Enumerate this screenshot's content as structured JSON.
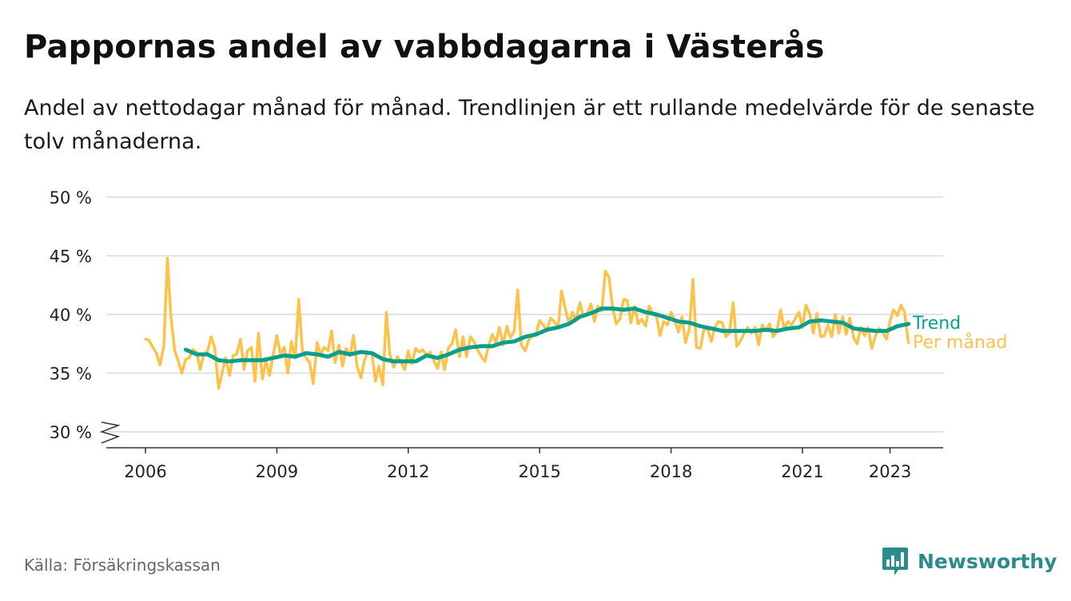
{
  "header": {
    "title": "Pappornas andel av vabbdagarna i Västerås",
    "subtitle": "Andel av nettodagar månad för månad. Trendlinjen är ett rullande medelvärde för de senaste tolv månaderna."
  },
  "footer": {
    "source": "Källa: Försäkringskassan",
    "brand": "Newsworthy"
  },
  "colors": {
    "monthly": "#fcc24a",
    "trend": "#0b9e8c",
    "grid": "#d9d9d9",
    "brand": "#2a8d8a"
  },
  "chart_data": {
    "type": "line",
    "x_unit": "year (decimal)",
    "xlim": [
      2006,
      2023.3
    ],
    "ylim": [
      30,
      50
    ],
    "y_axis_break": true,
    "grid": "horizontal",
    "x_ticks": [
      2006,
      2009,
      2012,
      2015,
      2018,
      2021,
      2023
    ],
    "y_ticks": [
      {
        "value": 30,
        "label": "30 %"
      },
      {
        "value": 35,
        "label": "35 %"
      },
      {
        "value": 40,
        "label": "40 %"
      },
      {
        "value": 45,
        "label": "45 %"
      },
      {
        "value": 50,
        "label": "50 %"
      }
    ],
    "legend": "inline labels at line ends",
    "series": [
      {
        "name": "Per månad",
        "color": "#fcc24a",
        "points": [
          [
            2006.0,
            37.9
          ],
          [
            2006.08,
            37.8
          ],
          [
            2006.17,
            37.2
          ],
          [
            2006.25,
            36.7
          ],
          [
            2006.33,
            35.7
          ],
          [
            2006.42,
            37.3
          ],
          [
            2006.5,
            44.8
          ],
          [
            2006.58,
            39.8
          ],
          [
            2006.67,
            36.9
          ],
          [
            2006.75,
            36.0
          ],
          [
            2006.83,
            35.0
          ],
          [
            2006.92,
            36.2
          ],
          [
            2007.0,
            36.3
          ],
          [
            2007.08,
            37.0
          ],
          [
            2007.17,
            36.8
          ],
          [
            2007.25,
            35.3
          ],
          [
            2007.33,
            36.6
          ],
          [
            2007.42,
            36.9
          ],
          [
            2007.5,
            38.1
          ],
          [
            2007.58,
            37.2
          ],
          [
            2007.67,
            33.7
          ],
          [
            2007.75,
            35.0
          ],
          [
            2007.83,
            36.3
          ],
          [
            2007.92,
            34.8
          ],
          [
            2008.0,
            36.5
          ],
          [
            2008.08,
            36.6
          ],
          [
            2008.17,
            37.9
          ],
          [
            2008.25,
            35.3
          ],
          [
            2008.33,
            36.9
          ],
          [
            2008.42,
            37.2
          ],
          [
            2008.5,
            34.3
          ],
          [
            2008.58,
            38.4
          ],
          [
            2008.67,
            34.5
          ],
          [
            2008.75,
            36.1
          ],
          [
            2008.83,
            34.8
          ],
          [
            2008.92,
            36.6
          ],
          [
            2009.0,
            38.2
          ],
          [
            2009.08,
            36.6
          ],
          [
            2009.17,
            37.2
          ],
          [
            2009.25,
            35.0
          ],
          [
            2009.33,
            37.7
          ],
          [
            2009.42,
            36.3
          ],
          [
            2009.5,
            41.3
          ],
          [
            2009.58,
            37.0
          ],
          [
            2009.67,
            36.3
          ],
          [
            2009.75,
            35.9
          ],
          [
            2009.83,
            34.1
          ],
          [
            2009.92,
            37.6
          ],
          [
            2010.0,
            36.6
          ],
          [
            2010.08,
            37.2
          ],
          [
            2010.17,
            36.9
          ],
          [
            2010.25,
            38.6
          ],
          [
            2010.33,
            35.9
          ],
          [
            2010.42,
            37.4
          ],
          [
            2010.5,
            35.6
          ],
          [
            2010.58,
            37.1
          ],
          [
            2010.67,
            36.5
          ],
          [
            2010.75,
            38.2
          ],
          [
            2010.83,
            35.6
          ],
          [
            2010.92,
            34.6
          ],
          [
            2011.0,
            36.1
          ],
          [
            2011.08,
            36.8
          ],
          [
            2011.17,
            36.7
          ],
          [
            2011.25,
            34.3
          ],
          [
            2011.33,
            35.6
          ],
          [
            2011.42,
            34.0
          ],
          [
            2011.5,
            40.2
          ],
          [
            2011.58,
            36.6
          ],
          [
            2011.67,
            35.5
          ],
          [
            2011.75,
            36.4
          ],
          [
            2011.83,
            36.0
          ],
          [
            2011.92,
            35.3
          ],
          [
            2012.0,
            36.9
          ],
          [
            2012.08,
            35.8
          ],
          [
            2012.17,
            37.1
          ],
          [
            2012.25,
            36.8
          ],
          [
            2012.33,
            37.0
          ],
          [
            2012.42,
            36.5
          ],
          [
            2012.5,
            36.8
          ],
          [
            2012.58,
            36.1
          ],
          [
            2012.67,
            35.4
          ],
          [
            2012.75,
            36.8
          ],
          [
            2012.83,
            35.3
          ],
          [
            2012.92,
            37.2
          ],
          [
            2013.0,
            37.5
          ],
          [
            2013.08,
            38.7
          ],
          [
            2013.17,
            36.4
          ],
          [
            2013.25,
            38.1
          ],
          [
            2013.33,
            36.4
          ],
          [
            2013.42,
            38.1
          ],
          [
            2013.5,
            37.7
          ],
          [
            2013.58,
            37.0
          ],
          [
            2013.67,
            36.4
          ],
          [
            2013.75,
            36.0
          ],
          [
            2013.83,
            37.3
          ],
          [
            2013.92,
            38.3
          ],
          [
            2014.0,
            37.6
          ],
          [
            2014.08,
            38.9
          ],
          [
            2014.17,
            37.4
          ],
          [
            2014.25,
            39.0
          ],
          [
            2014.33,
            38.0
          ],
          [
            2014.42,
            38.6
          ],
          [
            2014.5,
            42.1
          ],
          [
            2014.58,
            37.4
          ],
          [
            2014.67,
            36.9
          ],
          [
            2014.75,
            37.8
          ],
          [
            2014.83,
            38.2
          ],
          [
            2014.92,
            38.4
          ],
          [
            2015.0,
            39.5
          ],
          [
            2015.08,
            39.1
          ],
          [
            2015.17,
            38.6
          ],
          [
            2015.25,
            39.7
          ],
          [
            2015.33,
            39.4
          ],
          [
            2015.42,
            38.9
          ],
          [
            2015.5,
            42.0
          ],
          [
            2015.58,
            40.6
          ],
          [
            2015.67,
            39.2
          ],
          [
            2015.75,
            40.2
          ],
          [
            2015.83,
            39.5
          ],
          [
            2015.92,
            41.0
          ],
          [
            2016.0,
            39.8
          ],
          [
            2016.08,
            40.0
          ],
          [
            2016.17,
            40.9
          ],
          [
            2016.25,
            39.4
          ],
          [
            2016.33,
            40.7
          ],
          [
            2016.42,
            40.3
          ],
          [
            2016.5,
            43.7
          ],
          [
            2016.58,
            43.2
          ],
          [
            2016.67,
            40.5
          ],
          [
            2016.75,
            39.2
          ],
          [
            2016.83,
            39.6
          ],
          [
            2016.92,
            41.3
          ],
          [
            2017.0,
            41.2
          ],
          [
            2017.08,
            39.3
          ],
          [
            2017.17,
            40.7
          ],
          [
            2017.25,
            39.2
          ],
          [
            2017.33,
            39.6
          ],
          [
            2017.42,
            39.0
          ],
          [
            2017.5,
            40.7
          ],
          [
            2017.58,
            40.1
          ],
          [
            2017.67,
            39.8
          ],
          [
            2017.75,
            38.2
          ],
          [
            2017.83,
            39.4
          ],
          [
            2017.92,
            39.1
          ],
          [
            2018.0,
            40.2
          ],
          [
            2018.08,
            39.5
          ],
          [
            2018.17,
            38.5
          ],
          [
            2018.25,
            39.8
          ],
          [
            2018.33,
            37.6
          ],
          [
            2018.42,
            38.8
          ],
          [
            2018.5,
            43.0
          ],
          [
            2018.58,
            37.2
          ],
          [
            2018.67,
            37.1
          ],
          [
            2018.75,
            38.7
          ],
          [
            2018.83,
            38.8
          ],
          [
            2018.92,
            37.7
          ],
          [
            2019.0,
            38.9
          ],
          [
            2019.08,
            39.4
          ],
          [
            2019.17,
            39.3
          ],
          [
            2019.25,
            38.1
          ],
          [
            2019.33,
            38.4
          ],
          [
            2019.42,
            41.0
          ],
          [
            2019.5,
            37.3
          ],
          [
            2019.58,
            37.7
          ],
          [
            2019.67,
            38.4
          ],
          [
            2019.75,
            38.9
          ],
          [
            2019.83,
            38.4
          ],
          [
            2019.92,
            38.9
          ],
          [
            2020.0,
            37.4
          ],
          [
            2020.08,
            39.1
          ],
          [
            2020.17,
            38.6
          ],
          [
            2020.25,
            39.2
          ],
          [
            2020.33,
            38.1
          ],
          [
            2020.42,
            38.6
          ],
          [
            2020.5,
            40.4
          ],
          [
            2020.58,
            38.8
          ],
          [
            2020.67,
            39.4
          ],
          [
            2020.75,
            39.1
          ],
          [
            2020.83,
            39.6
          ],
          [
            2020.92,
            40.2
          ],
          [
            2021.0,
            38.9
          ],
          [
            2021.08,
            40.8
          ],
          [
            2021.17,
            40.0
          ],
          [
            2021.25,
            38.4
          ],
          [
            2021.33,
            40.1
          ],
          [
            2021.42,
            38.1
          ],
          [
            2021.5,
            38.2
          ],
          [
            2021.58,
            39.1
          ],
          [
            2021.67,
            38.1
          ],
          [
            2021.75,
            40.0
          ],
          [
            2021.83,
            38.4
          ],
          [
            2021.92,
            39.8
          ],
          [
            2022.0,
            38.3
          ],
          [
            2022.08,
            39.7
          ],
          [
            2022.17,
            38.0
          ],
          [
            2022.25,
            37.5
          ],
          [
            2022.33,
            38.9
          ],
          [
            2022.42,
            38.2
          ],
          [
            2022.5,
            38.9
          ],
          [
            2022.58,
            37.1
          ],
          [
            2022.67,
            38.2
          ],
          [
            2022.75,
            38.8
          ],
          [
            2022.83,
            38.5
          ],
          [
            2022.92,
            37.9
          ],
          [
            2023.0,
            39.4
          ],
          [
            2023.08,
            40.4
          ],
          [
            2023.17,
            39.9
          ],
          [
            2023.25,
            40.8
          ],
          [
            2023.33,
            40.2
          ],
          [
            2023.42,
            37.6
          ]
        ]
      },
      {
        "name": "Trend",
        "color": "#0b9e8c",
        "points": [
          [
            2006.92,
            37.0
          ],
          [
            2007.17,
            36.6
          ],
          [
            2007.42,
            36.6
          ],
          [
            2007.67,
            36.1
          ],
          [
            2007.92,
            36.0
          ],
          [
            2008.17,
            36.1
          ],
          [
            2008.42,
            36.1
          ],
          [
            2008.67,
            36.1
          ],
          [
            2008.92,
            36.3
          ],
          [
            2009.17,
            36.5
          ],
          [
            2009.42,
            36.4
          ],
          [
            2009.67,
            36.7
          ],
          [
            2009.92,
            36.6
          ],
          [
            2010.17,
            36.4
          ],
          [
            2010.42,
            36.8
          ],
          [
            2010.67,
            36.6
          ],
          [
            2010.92,
            36.8
          ],
          [
            2011.17,
            36.7
          ],
          [
            2011.42,
            36.2
          ],
          [
            2011.67,
            36.0
          ],
          [
            2011.92,
            36.0
          ],
          [
            2012.17,
            36.0
          ],
          [
            2012.42,
            36.5
          ],
          [
            2012.67,
            36.3
          ],
          [
            2012.92,
            36.6
          ],
          [
            2013.17,
            37.0
          ],
          [
            2013.42,
            37.2
          ],
          [
            2013.67,
            37.3
          ],
          [
            2013.92,
            37.3
          ],
          [
            2014.17,
            37.6
          ],
          [
            2014.42,
            37.7
          ],
          [
            2014.67,
            38.1
          ],
          [
            2014.92,
            38.3
          ],
          [
            2015.17,
            38.7
          ],
          [
            2015.42,
            38.9
          ],
          [
            2015.67,
            39.2
          ],
          [
            2015.92,
            39.8
          ],
          [
            2016.17,
            40.1
          ],
          [
            2016.42,
            40.5
          ],
          [
            2016.67,
            40.5
          ],
          [
            2016.92,
            40.4
          ],
          [
            2017.17,
            40.5
          ],
          [
            2017.42,
            40.2
          ],
          [
            2017.67,
            40.0
          ],
          [
            2017.92,
            39.7
          ],
          [
            2018.17,
            39.4
          ],
          [
            2018.42,
            39.3
          ],
          [
            2018.67,
            39.0
          ],
          [
            2018.92,
            38.8
          ],
          [
            2019.17,
            38.6
          ],
          [
            2019.42,
            38.6
          ],
          [
            2019.67,
            38.6
          ],
          [
            2019.92,
            38.6
          ],
          [
            2020.17,
            38.7
          ],
          [
            2020.42,
            38.6
          ],
          [
            2020.67,
            38.8
          ],
          [
            2020.92,
            38.9
          ],
          [
            2021.17,
            39.4
          ],
          [
            2021.42,
            39.5
          ],
          [
            2021.67,
            39.4
          ],
          [
            2021.92,
            39.3
          ],
          [
            2022.17,
            38.8
          ],
          [
            2022.42,
            38.7
          ],
          [
            2022.67,
            38.6
          ],
          [
            2022.92,
            38.6
          ],
          [
            2023.17,
            39.0
          ],
          [
            2023.42,
            39.2
          ]
        ]
      }
    ]
  }
}
